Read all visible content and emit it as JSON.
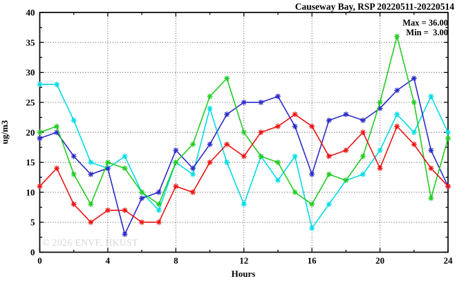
{
  "title": "Causeway Bay, RSP 20220511-20220514",
  "annotation": {
    "max_label": "Max = 36.00",
    "min_label": "Min =  3.00"
  },
  "watermark": "© 2026 ENVF, HKUST",
  "chart_data": {
    "type": "line",
    "title": "Causeway Bay, RSP 20220511-20220514",
    "xlabel": "Hours",
    "ylabel": "ug/m3",
    "xlim": [
      0,
      24
    ],
    "ylim": [
      0,
      40
    ],
    "x_major_ticks": [
      0,
      4,
      8,
      12,
      16,
      20,
      24
    ],
    "x_minor_step": 2,
    "y_major_ticks": [
      0,
      5,
      10,
      15,
      20,
      25,
      30,
      35,
      40
    ],
    "y_minor_step": 2.5,
    "grid": true,
    "legend_position": "none",
    "marker": "asterisk",
    "x": [
      0,
      1,
      2,
      3,
      4,
      5,
      6,
      7,
      8,
      9,
      10,
      11,
      12,
      13,
      14,
      15,
      16,
      17,
      18,
      19,
      20,
      21,
      22,
      23,
      24
    ],
    "series": [
      {
        "name": "cyan-series",
        "color": "#00dce6",
        "values": [
          28,
          28,
          22,
          15,
          14,
          16,
          10,
          7,
          15,
          13,
          24,
          15,
          8,
          16,
          12,
          16,
          4,
          8,
          12,
          13,
          17,
          23,
          20,
          26,
          20
        ]
      },
      {
        "name": "blue-series",
        "color": "#2a2ac8",
        "values": [
          19,
          20,
          16,
          13,
          14,
          3,
          9,
          10,
          17,
          14,
          18,
          23,
          25,
          25,
          26,
          21,
          13,
          22,
          23,
          22,
          24,
          27,
          29,
          17,
          11
        ]
      },
      {
        "name": "green-series",
        "color": "#21cc21",
        "values": [
          20,
          21,
          13,
          8,
          15,
          14,
          10,
          8,
          15,
          18,
          26,
          29,
          20,
          16,
          15,
          10,
          8,
          13,
          12,
          16,
          25,
          36,
          25,
          9,
          19
        ]
      },
      {
        "name": "red-series",
        "color": "#ee1111",
        "values": [
          11,
          14,
          8,
          5,
          7,
          7,
          5,
          5,
          11,
          10,
          15,
          18,
          16,
          20,
          21,
          23,
          21,
          16,
          17,
          20,
          14,
          21,
          18,
          14,
          11
        ]
      }
    ],
    "max": 36.0,
    "min": 3.0,
    "grid_color": "#3c3c3c",
    "axis_color": "#000000"
  }
}
